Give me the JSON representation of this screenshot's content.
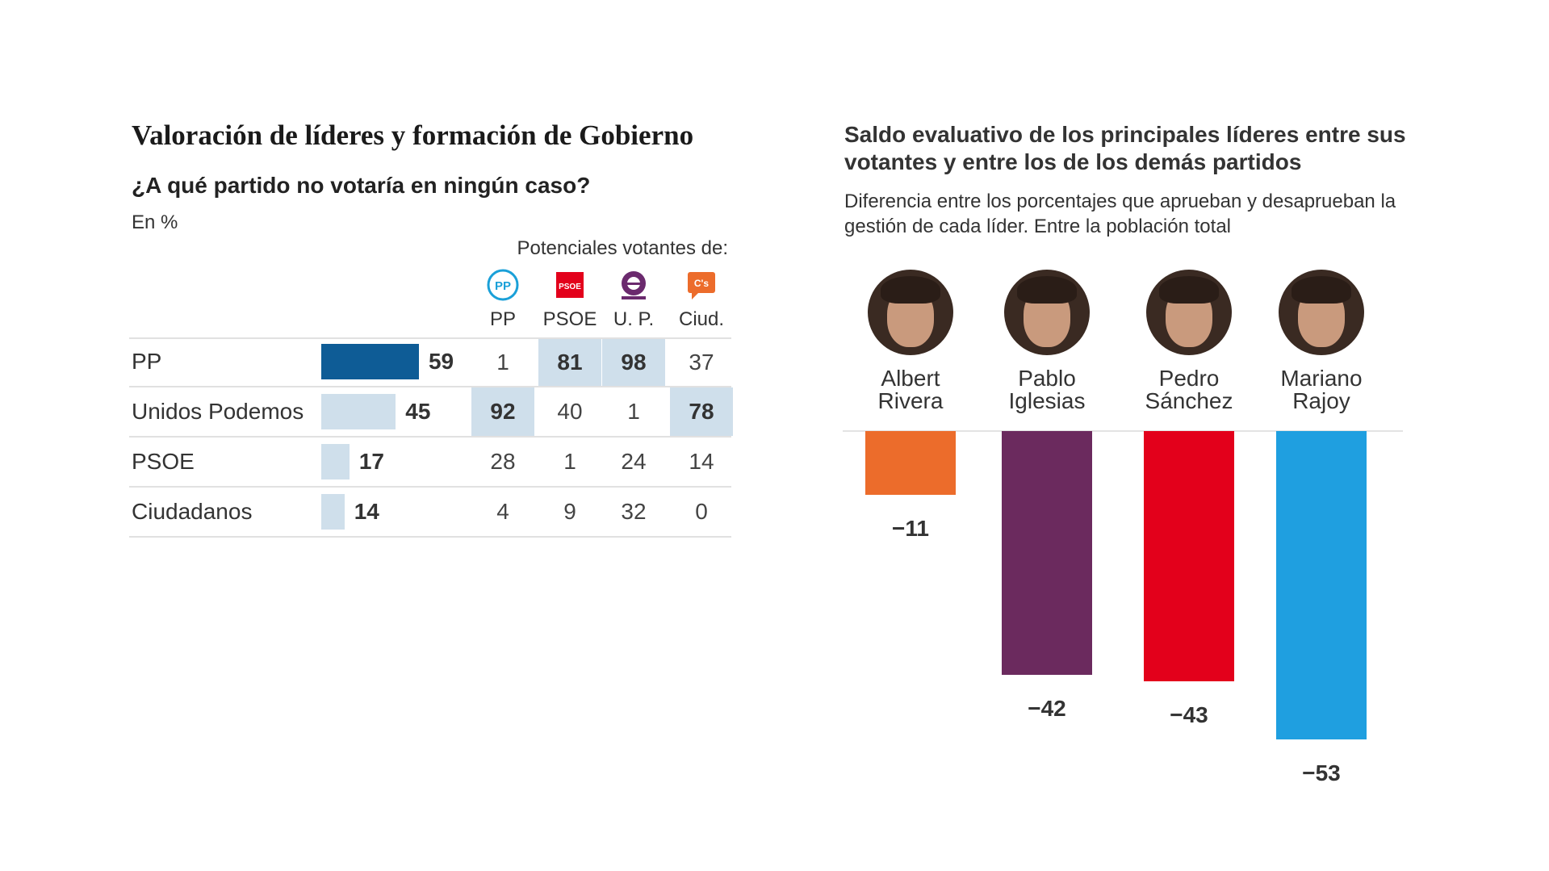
{
  "left": {
    "title": "Valoración de líderes y formación de Gobierno",
    "subtitle": "¿A qué partido no votaría en ningún caso?",
    "unit": "En %",
    "voters_header": "Potenciales votantes de:"
  },
  "right": {
    "title": "Saldo evaluativo de los principales líderes entre sus votantes y entre los de los demás partidos",
    "subtitle": "Diferencia entre los porcentajes que aprueban y desaprueban la gestión de cada líder. Entre la población total"
  },
  "chart_data": [
    {
      "type": "table",
      "title": "Valoración de líderes y formación de Gobierno",
      "subtitle": "¿A qué partido no votaría en ningún caso?",
      "unit": "En %",
      "columns_header": "Potenciales votantes de:",
      "columns": [
        {
          "label": "PP",
          "logo": "pp-logo-icon",
          "color": "#1aa0d8"
        },
        {
          "label": "PSOE",
          "logo": "psoe-logo-icon",
          "color": "#e3001b"
        },
        {
          "label": "U. P.",
          "logo": "podemos-logo-icon",
          "color": "#6b2a6e"
        },
        {
          "label": "Ciud.",
          "logo": "ciudadanos-logo-icon",
          "color": "#ec6c2b"
        }
      ],
      "bar_max": 100,
      "rows": [
        {
          "party": "PP",
          "total": 59,
          "cells": [
            1,
            81,
            98,
            37
          ],
          "highlight": [
            false,
            true,
            true,
            false
          ],
          "bar_color": "#0e5c96"
        },
        {
          "party": "Unidos Podemos",
          "total": 45,
          "cells": [
            92,
            40,
            1,
            78
          ],
          "highlight": [
            true,
            false,
            false,
            true
          ],
          "bar_color": "#cfdfeb"
        },
        {
          "party": "PSOE",
          "total": 17,
          "cells": [
            28,
            1,
            24,
            14
          ],
          "highlight": [
            false,
            false,
            false,
            false
          ],
          "bar_color": "#cfdfeb"
        },
        {
          "party": "Ciudadanos",
          "total": 14,
          "cells": [
            4,
            9,
            32,
            0
          ],
          "highlight": [
            false,
            false,
            false,
            false
          ],
          "bar_color": "#cfdfeb"
        }
      ]
    },
    {
      "type": "bar",
      "title": "Saldo evaluativo de los principales líderes entre sus votantes y entre los de los demás partidos",
      "subtitle": "Diferencia entre los porcentajes que aprueban y desaprueban la gestión de cada líder. Entre la población total",
      "categories": [
        "Albert Rivera",
        "Pablo Iglesias",
        "Pedro Sánchez",
        "Mariano Rajoy"
      ],
      "name_lines": [
        [
          "Albert",
          "Rivera"
        ],
        [
          "Pablo",
          "Iglesias"
        ],
        [
          "Pedro",
          "Sánchez"
        ],
        [
          "Mariano",
          "Rajoy"
        ]
      ],
      "value_labels": [
        "−11",
        "−42",
        "−43",
        "−53"
      ],
      "values": [
        -11,
        -42,
        -43,
        -53
      ],
      "colors": [
        "#ec6c2b",
        "#6b2a5e",
        "#e3001b",
        "#1f9fe0"
      ],
      "ylim": [
        -53,
        0
      ]
    }
  ]
}
